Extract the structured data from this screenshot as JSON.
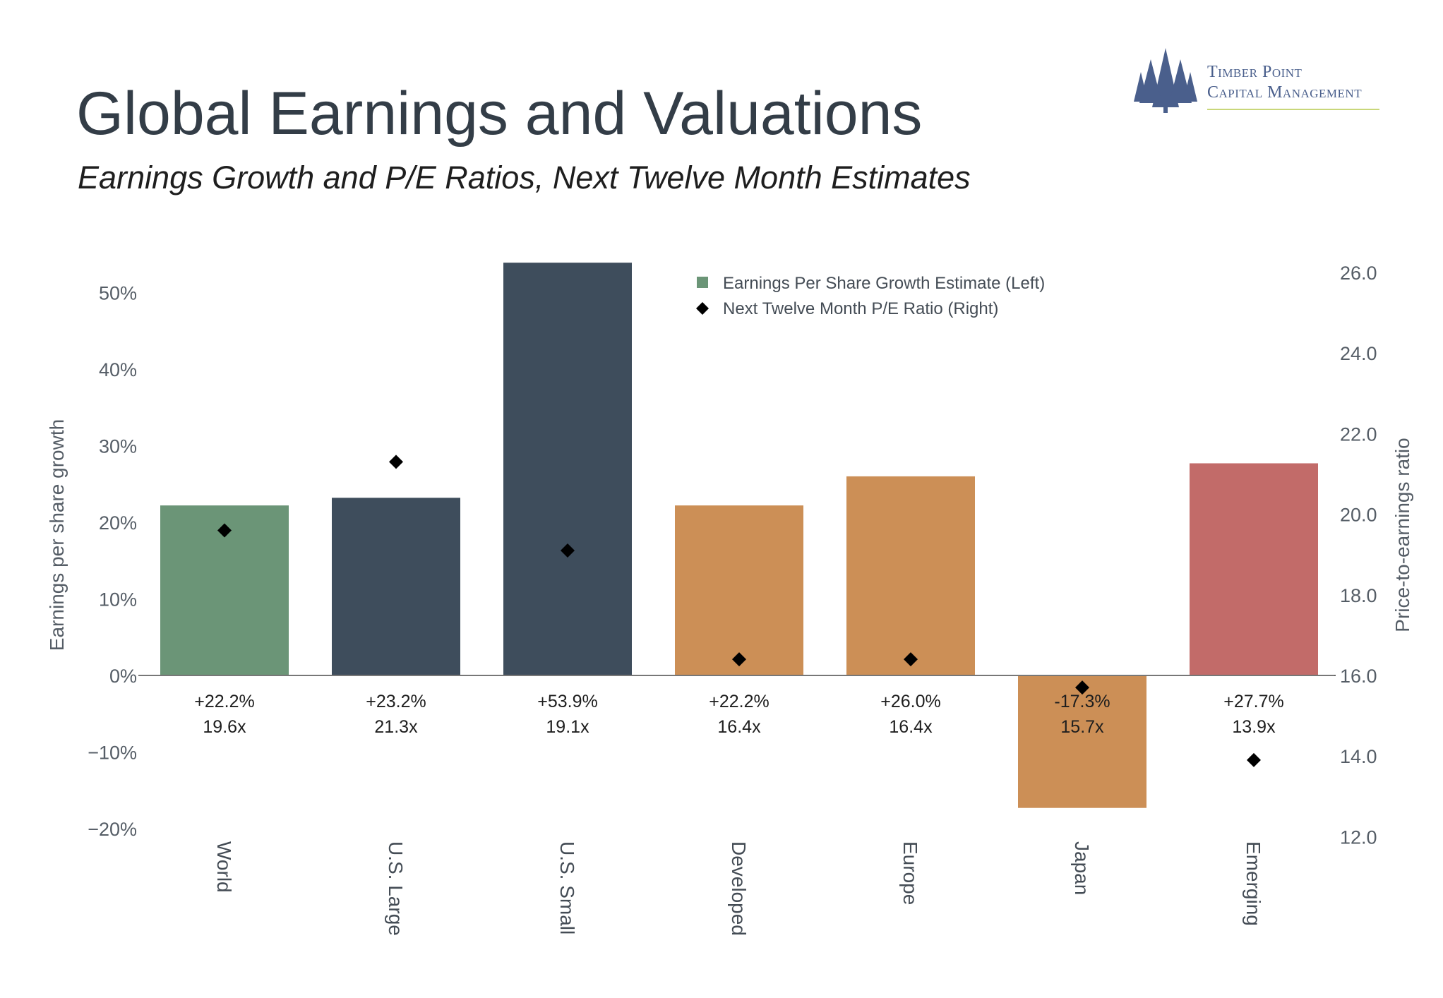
{
  "title": "Global Earnings and Valuations",
  "subtitle": "Earnings Growth and P/E Ratios, Next Twelve Month Estimates",
  "logo": {
    "line1": "Timber Point",
    "line2": "Capital Management",
    "icon": "pine-trees-icon"
  },
  "colors": {
    "world": "#6b9577",
    "us": "#3e4d5c",
    "intl": "#cc8f56",
    "emerging": "#c26b69",
    "marker": "#000000",
    "axis": "#666666",
    "text": "#333d47"
  },
  "chart_data": {
    "type": "bar",
    "categories": [
      "World",
      "U.S. Large",
      "U.S. Small",
      "Developed",
      "Europe",
      "Japan",
      "Emerging"
    ],
    "series": [
      {
        "name": "Earnings Per Share Growth Estimate (Left)",
        "axis": "left",
        "type": "bar",
        "values": [
          22.2,
          23.2,
          53.9,
          22.2,
          26.0,
          -17.3,
          27.7
        ]
      },
      {
        "name": "Next Twelve Month P/E Ratio (Right)",
        "axis": "right",
        "type": "scatter",
        "marker": "diamond",
        "values": [
          19.6,
          21.3,
          19.1,
          16.4,
          16.4,
          15.7,
          13.9
        ]
      }
    ],
    "bar_colors": [
      "#6b9577",
      "#3e4d5c",
      "#3e4d5c",
      "#cc8f56",
      "#cc8f56",
      "#cc8f56",
      "#c26b69"
    ],
    "data_labels_growth": [
      "+22.2%",
      "+23.2%",
      "+53.9%",
      "+22.2%",
      "+26.0%",
      "-17.3%",
      "+27.7%"
    ],
    "data_labels_pe": [
      "19.6x",
      "21.3x",
      "19.1x",
      "16.4x",
      "16.4x",
      "15.7x",
      "13.9x"
    ],
    "ylabel": "Earnings per share growth",
    "ylabel_right": "Price-to-earnings ratio",
    "ylim": [
      -20,
      50
    ],
    "ylim_right": [
      12,
      26
    ],
    "yticks": [
      "50%",
      "40%",
      "30%",
      "20%",
      "10%",
      "0%",
      "−10%",
      "−20%"
    ],
    "yticks_right": [
      "26.0",
      "24.0",
      "22.0",
      "20.0",
      "18.0",
      "16.0",
      "14.0",
      "12.0"
    ],
    "legend_position": "top-center",
    "grid": false
  }
}
